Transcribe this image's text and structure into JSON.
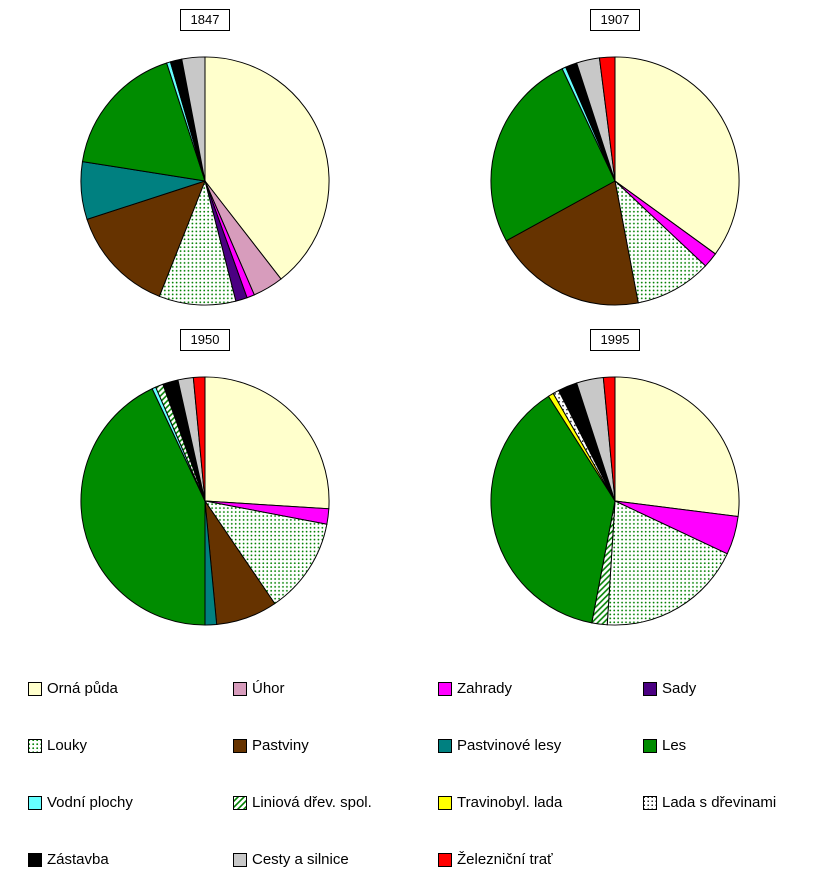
{
  "page": {
    "background": "#FFFFFF"
  },
  "legend": {
    "items": [
      {
        "label": "Orná půda",
        "color": "#FFFFCC",
        "pattern": null
      },
      {
        "label": "Úhor",
        "color": "#D79CBC",
        "pattern": null
      },
      {
        "label": "Zahrady",
        "color": "#FF00FF",
        "pattern": null
      },
      {
        "label": "Sady",
        "color": "#4B0082",
        "pattern": null
      },
      {
        "label": "Louky",
        "color": "#FFFFFF",
        "pattern": "pat-dots-green"
      },
      {
        "label": "Pastviny",
        "color": "#663300",
        "pattern": null
      },
      {
        "label": "Pastvinové lesy",
        "color": "#008080",
        "pattern": null
      },
      {
        "label": "Les",
        "color": "#008C00",
        "pattern": null
      },
      {
        "label": "Vodní plochy",
        "color": "#66FFFF",
        "pattern": null
      },
      {
        "label": "Liniová dřev. spol.",
        "color": "#FFFFFF",
        "pattern": "pat-hatch-green"
      },
      {
        "label": "Travinobyl. lada",
        "color": "#FFFF00",
        "pattern": null
      },
      {
        "label": "Lada s dřevinami",
        "color": "#FFFFFF",
        "pattern": "pat-dots-black"
      },
      {
        "label": "Zástavba",
        "color": "#000000",
        "pattern": null
      },
      {
        "label": "Cesty a silnice",
        "color": "#C8C8C8",
        "pattern": null
      },
      {
        "label": "Železniční trať",
        "color": "#FF0000",
        "pattern": null
      }
    ]
  },
  "chart_data": {
    "type": "pie",
    "title": "",
    "unit": "%",
    "legend_position": "bottom",
    "categories": [
      "Orná půda",
      "Úhor",
      "Zahrady",
      "Sady",
      "Louky",
      "Pastviny",
      "Pastvinové lesy",
      "Les",
      "Vodní plochy",
      "Liniová dřev. spol.",
      "Travinobyl. lada",
      "Lada s dřevinami",
      "Zástavba",
      "Cesty a silnice",
      "Železniční trať"
    ],
    "pies": [
      {
        "year": "1847",
        "slices": [
          {
            "category": "Orná půda",
            "value": 39.5
          },
          {
            "category": "Úhor",
            "value": 4
          },
          {
            "category": "Zahrady",
            "value": 1
          },
          {
            "category": "Sady",
            "value": 1.5
          },
          {
            "category": "Louky",
            "value": 10
          },
          {
            "category": "Pastviny",
            "value": 14
          },
          {
            "category": "Pastvinové lesy",
            "value": 7.5
          },
          {
            "category": "Les",
            "value": 17.5
          },
          {
            "category": "Vodní plochy",
            "value": 0.5
          },
          {
            "category": "Zástavba",
            "value": 1.5
          },
          {
            "category": "Cesty a silnice",
            "value": 3
          }
        ]
      },
      {
        "year": "1907",
        "slices": [
          {
            "category": "Orná půda",
            "value": 35
          },
          {
            "category": "Zahrady",
            "value": 2
          },
          {
            "category": "Louky",
            "value": 10
          },
          {
            "category": "Pastviny",
            "value": 20
          },
          {
            "category": "Les",
            "value": 26
          },
          {
            "category": "Vodní plochy",
            "value": 0.5
          },
          {
            "category": "Zástavba",
            "value": 1.5
          },
          {
            "category": "Cesty a silnice",
            "value": 3
          },
          {
            "category": "Železniční trať",
            "value": 2
          }
        ]
      },
      {
        "year": "1950",
        "slices": [
          {
            "category": "Orná půda",
            "value": 26
          },
          {
            "category": "Zahrady",
            "value": 2
          },
          {
            "category": "Louky",
            "value": 12.5
          },
          {
            "category": "Pastviny",
            "value": 8
          },
          {
            "category": "Pastvinové lesy",
            "value": 1.5
          },
          {
            "category": "Les",
            "value": 43
          },
          {
            "category": "Vodní plochy",
            "value": 0.5
          },
          {
            "category": "Liniová dřev. spol.",
            "value": 1
          },
          {
            "category": "Zástavba",
            "value": 2
          },
          {
            "category": "Cesty a silnice",
            "value": 2
          },
          {
            "category": "Železniční trať",
            "value": 1.5
          }
        ]
      },
      {
        "year": "1995",
        "slices": [
          {
            "category": "Orná půda",
            "value": 27
          },
          {
            "category": "Zahrady",
            "value": 5
          },
          {
            "category": "Louky",
            "value": 19
          },
          {
            "category": "Liniová dřev. spol.",
            "value": 2
          },
          {
            "category": "Les",
            "value": 38
          },
          {
            "category": "Travinobyl. lada",
            "value": 0.7
          },
          {
            "category": "Lada s dřevinami",
            "value": 0.8
          },
          {
            "category": "Zástavba",
            "value": 2.5
          },
          {
            "category": "Cesty a silnice",
            "value": 3.5
          },
          {
            "category": "Železniční trať",
            "value": 1.5
          }
        ]
      }
    ]
  }
}
